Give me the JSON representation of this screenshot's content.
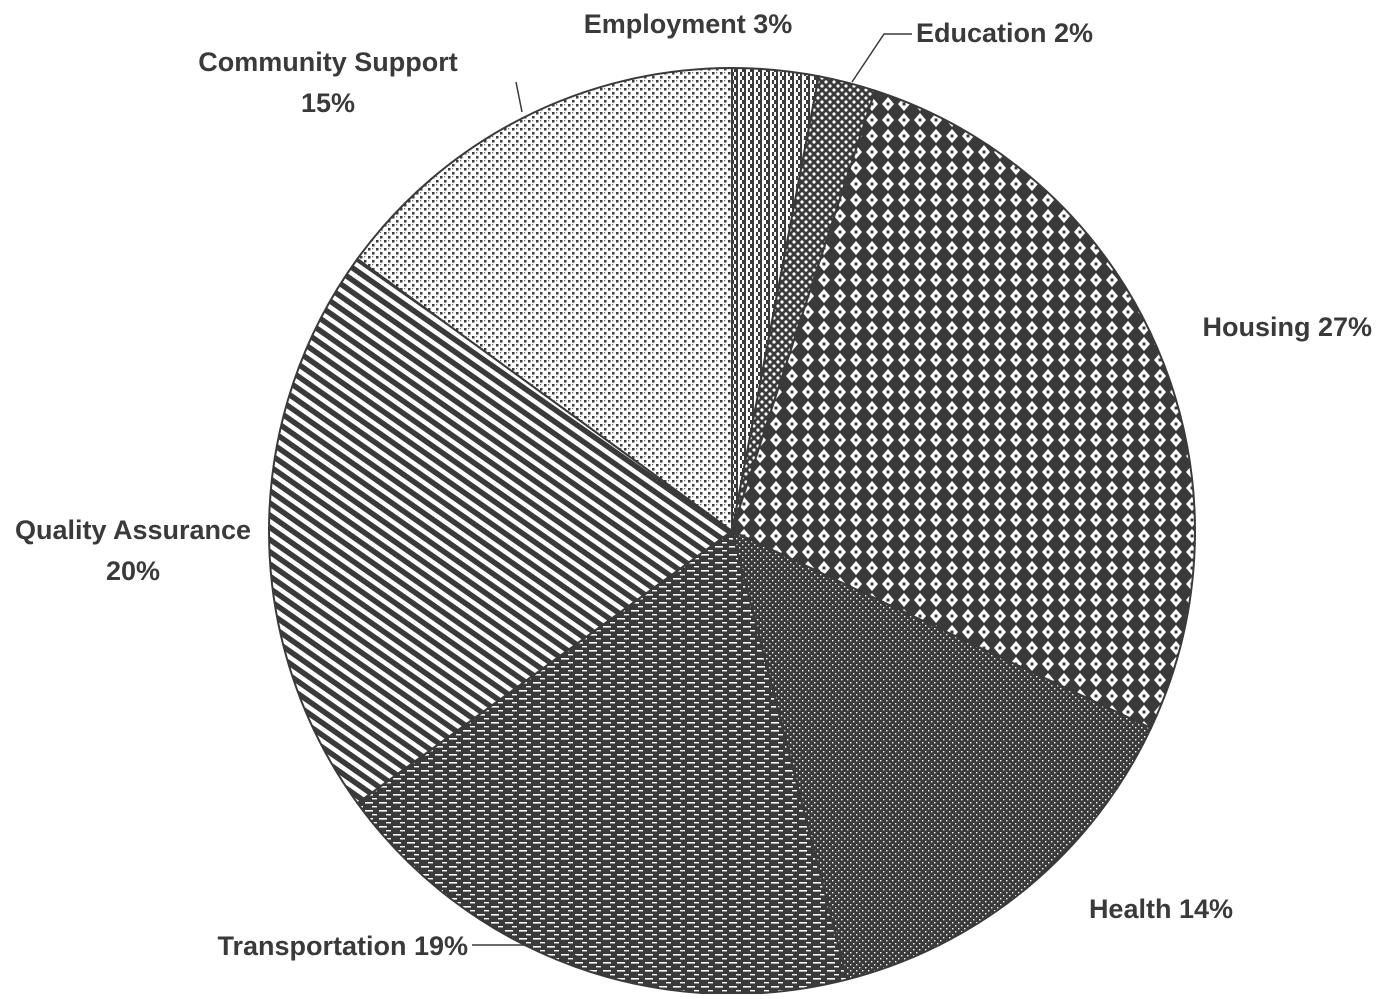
{
  "chart_data": {
    "type": "pie",
    "title": "",
    "slices": [
      {
        "name": "Employment",
        "value": 3,
        "pct_label": "3%",
        "label": "Employment 3%",
        "pattern": "vertical-checker"
      },
      {
        "name": "Education",
        "value": 2,
        "pct_label": "2%",
        "label": "Education 2%",
        "pattern": "diagonal-dots"
      },
      {
        "name": "Housing",
        "value": 27,
        "pct_label": "27%",
        "label": "Housing 27%",
        "pattern": "large-diamond-checker"
      },
      {
        "name": "Health",
        "value": 14,
        "pct_label": "14%",
        "label": "Health 14%",
        "pattern": "fine-dots"
      },
      {
        "name": "Transportation",
        "value": 19,
        "pct_label": "19%",
        "label": "Transportation 19%",
        "pattern": "horizontal-dashes"
      },
      {
        "name": "Quality Assurance",
        "value": 20,
        "pct_label": "20%",
        "label": "Quality Assurance 20%",
        "pattern": "diagonal-stripes"
      },
      {
        "name": "Community Support",
        "value": 15,
        "pct_label": "15%",
        "label": "Community Support 15%",
        "pattern": "small-checker"
      }
    ],
    "start_angle": "12 o'clock",
    "direction": "clockwise",
    "legend": "none (data labels beside slices)",
    "colors": {
      "ink": "#3a3a3a",
      "background": "#ffffff"
    }
  }
}
